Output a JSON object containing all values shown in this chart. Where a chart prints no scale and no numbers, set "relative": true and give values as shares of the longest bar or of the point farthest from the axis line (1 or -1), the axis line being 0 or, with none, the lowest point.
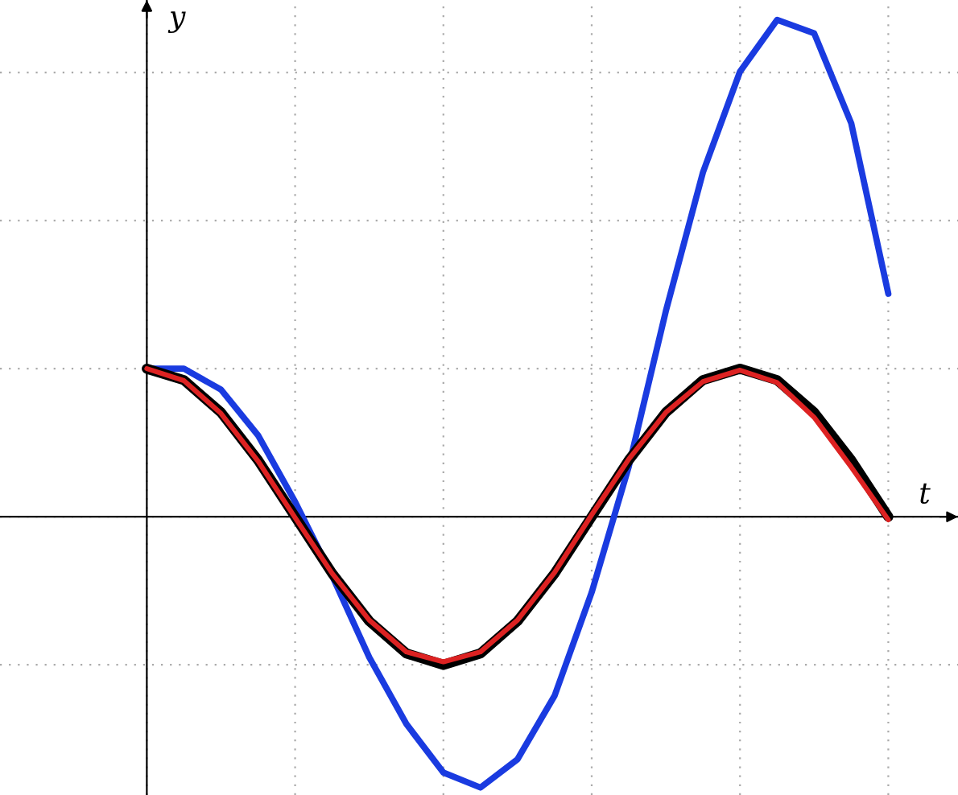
{
  "chart_data": {
    "type": "line",
    "relative": true,
    "xlabel": "t",
    "ylabel": "y",
    "categories": [
      null,
      null,
      null,
      null,
      null,
      null,
      null,
      null,
      null,
      null,
      null,
      null,
      null,
      null,
      null,
      null,
      null,
      null,
      null,
      null,
      null
    ],
    "grid": true,
    "marker": "none",
    "line_style": "solid",
    "series": [
      {
        "color": "#1a3be0",
        "values": [
          0.298,
          0.298,
          0.256,
          0.164,
          0.03,
          -0.119,
          -0.283,
          -0.417,
          -0.515,
          -0.545,
          -0.488,
          -0.36,
          -0.152,
          0.101,
          0.414,
          0.693,
          0.896,
          1.0,
          0.973,
          0.792,
          0.449
        ]
      },
      {
        "color": "#000000",
        "values": [
          0.298,
          0.275,
          0.21,
          0.114,
          0,
          -0.114,
          -0.21,
          -0.275,
          -0.298,
          -0.275,
          -0.21,
          -0.114,
          0,
          0.114,
          0.21,
          0.275,
          0.298,
          0.275,
          0.21,
          0.114,
          0
        ]
      },
      {
        "color": "#dd2222",
        "values": [
          0.298,
          0.274,
          0.208,
          0.112,
          -0.002,
          -0.114,
          -0.208,
          -0.272,
          -0.292,
          -0.272,
          -0.208,
          -0.112,
          0.004,
          0.116,
          0.21,
          0.272,
          0.295,
          0.27,
          0.2,
          0.1,
          -0.006
        ]
      }
    ]
  }
}
